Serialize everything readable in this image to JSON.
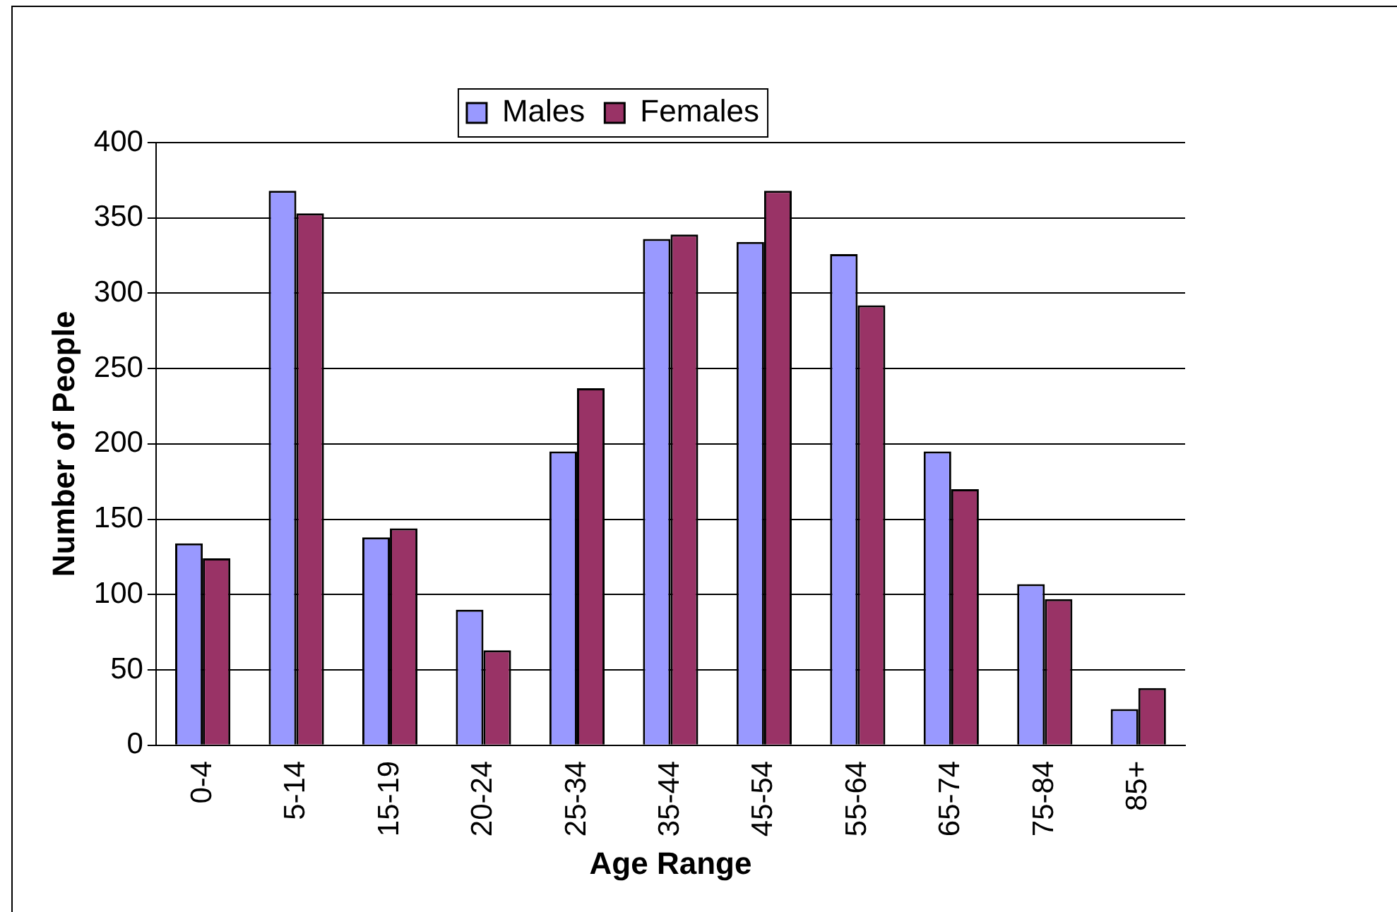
{
  "chart_data": {
    "type": "bar",
    "xlabel": "Age Range",
    "ylabel": "Number of People",
    "categories": [
      "0-4",
      "5-14",
      "15-19",
      "20-24",
      "25-34",
      "35-44",
      "45-54",
      "55-64",
      "65-74",
      "75-84",
      "85+"
    ],
    "series": [
      {
        "name": "Males",
        "color": "#9999ff",
        "values": [
          134,
          368,
          138,
          90,
          195,
          336,
          334,
          326,
          195,
          107,
          24
        ]
      },
      {
        "name": "Females",
        "color": "#993366",
        "values": [
          124,
          353,
          144,
          63,
          237,
          339,
          368,
          292,
          170,
          97,
          38
        ]
      }
    ],
    "ylim": [
      0,
      400
    ],
    "yticks": [
      0,
      50,
      100,
      150,
      200,
      250,
      300,
      350,
      400
    ],
    "grid": "y",
    "legend": "top"
  }
}
